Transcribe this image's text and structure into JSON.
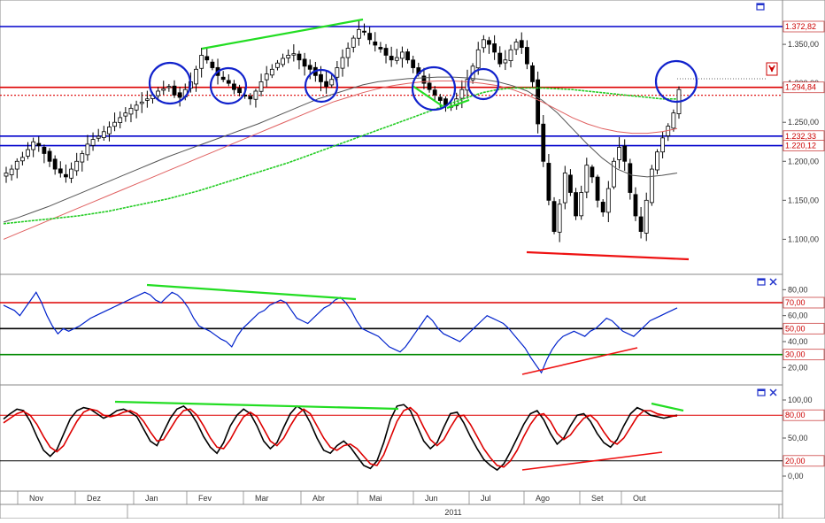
{
  "colors": {
    "background": "#ffffff",
    "price_candles": "#000000",
    "ma_fast": "#555555",
    "ma_mid": "#e06060",
    "ma_slow": "#22cc22",
    "hline_blue": "#0000cc",
    "hline_red": "#dd0000",
    "rsi_line": "#0022cc",
    "stoch_k": "#000000",
    "stoch_d": "#dd0000",
    "trend_green": "#22dd22",
    "trend_red": "#ee1111",
    "circles": "#1122cc",
    "label_text": "#cc0000",
    "axis_text": "#333333"
  },
  "icons": {
    "price_panel": [
      "window-icon"
    ],
    "rsi_panel": [
      "window-icon",
      "close-icon"
    ],
    "stoch_panel": [
      "window-icon",
      "close-icon"
    ],
    "alert": "alert-arrow-icon"
  },
  "x_axis": {
    "months": [
      "Nov",
      "Dez",
      "Jan",
      "Fev",
      "Mar",
      "Abr",
      "Mai",
      "Jun",
      "Jul",
      "Ago",
      "Set",
      "Out"
    ],
    "year": "2011"
  },
  "chart_data": [
    {
      "type": "candlestick",
      "panel": "price",
      "x_range": [
        "Nov",
        "Out"
      ],
      "ylim": [
        1060,
        1380
      ],
      "y_ticks": [
        {
          "value": 1100,
          "label": "1.100,00"
        },
        {
          "value": 1150,
          "label": "1.150,00"
        },
        {
          "value": 1200,
          "label": "1.200,00"
        },
        {
          "value": 1250,
          "label": "1.250,00"
        },
        {
          "value": 1300,
          "label": "1.300,00"
        },
        {
          "value": 1350,
          "label": "1.350,00"
        }
      ],
      "horizontal_lines": [
        {
          "value": 1372.82,
          "label": "1.372,82",
          "color": "blue"
        },
        {
          "value": 1294.84,
          "label": "1.294,84",
          "color": "red"
        },
        {
          "value": 1232.33,
          "label": "1.232,33",
          "color": "blue"
        },
        {
          "value": 1220.12,
          "label": "1.220,12",
          "color": "blue"
        }
      ],
      "close_series": [
        1185,
        1190,
        1200,
        1205,
        1215,
        1225,
        1220,
        1210,
        1200,
        1190,
        1185,
        1180,
        1190,
        1200,
        1210,
        1222,
        1228,
        1232,
        1238,
        1244,
        1250,
        1256,
        1262,
        1268,
        1272,
        1276,
        1280,
        1285,
        1290,
        1293,
        1296,
        1285,
        1282,
        1292,
        1302,
        1318,
        1336,
        1330,
        1320,
        1310,
        1305,
        1300,
        1292,
        1288,
        1284,
        1280,
        1290,
        1302,
        1312,
        1318,
        1326,
        1332,
        1336,
        1338,
        1330,
        1322,
        1318,
        1310,
        1302,
        1296,
        1305,
        1320,
        1333,
        1345,
        1358,
        1369,
        1366,
        1356,
        1349,
        1344,
        1336,
        1330,
        1333,
        1340,
        1330,
        1320,
        1312,
        1300,
        1292,
        1285,
        1278,
        1272,
        1270,
        1280,
        1292,
        1305,
        1322,
        1343,
        1356,
        1350,
        1340,
        1325,
        1330,
        1343,
        1353,
        1346,
        1325,
        1302,
        1248,
        1200,
        1150,
        1110,
        1145,
        1185,
        1160,
        1130,
        1160,
        1195,
        1180,
        1150,
        1135,
        1165,
        1200,
        1218,
        1200,
        1160,
        1130,
        1110,
        1150,
        1190,
        1212,
        1230,
        1245,
        1262,
        1292
      ],
      "series": [
        {
          "name": "",
          "kind": "moving_average",
          "values": [
            1122,
            1128,
            1135,
            1142,
            1150,
            1158,
            1166,
            1174,
            1182,
            1190,
            1198,
            1206,
            1213,
            1220,
            1227,
            1234,
            1241,
            1248,
            1256,
            1264,
            1272,
            1280,
            1286,
            1292,
            1298,
            1302,
            1304,
            1306,
            1307,
            1308,
            1308,
            1307,
            1305,
            1302,
            1297,
            1290,
            1278,
            1262,
            1242,
            1222,
            1204,
            1190,
            1182,
            1180,
            1182,
            1185
          ]
        },
        {
          "name": "",
          "kind": "moving_average",
          "values": [
            1100,
            1108,
            1116,
            1124,
            1132,
            1140,
            1148,
            1156,
            1164,
            1172,
            1180,
            1188,
            1196,
            1204,
            1212,
            1220,
            1228,
            1236,
            1244,
            1252,
            1260,
            1268,
            1276,
            1282,
            1288,
            1293,
            1297,
            1300,
            1302,
            1303,
            1303,
            1302,
            1300,
            1297,
            1292,
            1285,
            1276,
            1266,
            1256,
            1248,
            1242,
            1238,
            1236,
            1236,
            1238,
            1242
          ]
        },
        {
          "name": "",
          "kind": "moving_average",
          "values": [
            1120,
            1122,
            1124,
            1126,
            1128,
            1130,
            1133,
            1136,
            1140,
            1144,
            1148,
            1152,
            1157,
            1162,
            1168,
            1174,
            1180,
            1186,
            1192,
            1198,
            1205,
            1212,
            1219,
            1226,
            1233,
            1240,
            1247,
            1254,
            1261,
            1268,
            1275,
            1282,
            1288,
            1292,
            1294,
            1294,
            1294,
            1293,
            1292,
            1290,
            1288,
            1286,
            1284,
            1282,
            1280,
            1280
          ]
        }
      ],
      "annotations": [
        "circles",
        "trendlines"
      ]
    },
    {
      "type": "line",
      "panel": "rsi",
      "ylim": [
        10,
        85
      ],
      "y_ticks": [
        {
          "value": 80,
          "label": "80,00"
        },
        {
          "value": 60,
          "label": "60,00"
        },
        {
          "value": 40,
          "label": "40,00"
        },
        {
          "value": 20,
          "label": "20,00"
        }
      ],
      "levels": [
        {
          "value": 70,
          "label": "70,00",
          "color": "red"
        },
        {
          "value": 50,
          "label": "50,00",
          "color": "black"
        },
        {
          "value": 30,
          "label": "30,00",
          "color": "green"
        }
      ],
      "values": [
        68,
        66,
        64,
        60,
        66,
        72,
        78,
        70,
        60,
        52,
        46,
        50,
        48,
        50,
        52,
        55,
        58,
        60,
        62,
        64,
        66,
        68,
        70,
        72,
        74,
        76,
        78,
        76,
        72,
        70,
        74,
        78,
        76,
        72,
        66,
        58,
        52,
        50,
        48,
        45,
        42,
        40,
        36,
        44,
        50,
        54,
        58,
        62,
        64,
        68,
        70,
        72,
        70,
        64,
        58,
        56,
        54,
        58,
        62,
        66,
        68,
        72,
        74,
        70,
        64,
        56,
        50,
        48,
        46,
        44,
        40,
        36,
        34,
        32,
        36,
        42,
        48,
        54,
        60,
        56,
        50,
        46,
        44,
        42,
        40,
        44,
        48,
        52,
        56,
        60,
        58,
        56,
        54,
        50,
        45,
        40,
        35,
        28,
        22,
        16,
        26,
        34,
        40,
        44,
        46,
        48,
        46,
        44,
        48,
        50,
        54,
        58,
        56,
        52,
        48,
        46,
        44,
        48,
        52,
        56,
        58,
        60,
        62,
        64,
        66
      ]
    },
    {
      "type": "line",
      "panel": "stochastic",
      "ylim": [
        -10,
        110
      ],
      "y_ticks": [
        {
          "value": 100,
          "label": "100,00"
        },
        {
          "value": 50,
          "label": "50,00"
        },
        {
          "value": 0,
          "label": "0,00"
        }
      ],
      "levels": [
        {
          "value": 80,
          "label": "80,00",
          "color": "red"
        },
        {
          "value": 20,
          "label": "20,00",
          "color": "black"
        }
      ],
      "series": [
        {
          "name": "",
          "kind": "k",
          "values": [
            75,
            82,
            88,
            86,
            72,
            52,
            34,
            26,
            35,
            55,
            75,
            86,
            90,
            88,
            82,
            76,
            80,
            86,
            88,
            84,
            78,
            62,
            46,
            40,
            58,
            76,
            88,
            92,
            84,
            70,
            52,
            38,
            30,
            44,
            66,
            80,
            88,
            82,
            66,
            46,
            36,
            44,
            64,
            82,
            92,
            86,
            70,
            50,
            34,
            30,
            40,
            46,
            38,
            26,
            14,
            10,
            20,
            44,
            74,
            92,
            94,
            86,
            66,
            46,
            36,
            44,
            64,
            82,
            84,
            70,
            52,
            36,
            22,
            14,
            8,
            16,
            32,
            50,
            68,
            82,
            86,
            74,
            56,
            42,
            50,
            66,
            80,
            82,
            72,
            56,
            44,
            38,
            48,
            66,
            82,
            90,
            86,
            80,
            78,
            76,
            78,
            80
          ]
        },
        {
          "name": "",
          "kind": "d",
          "values": [
            70,
            76,
            82,
            85,
            80,
            68,
            52,
            38,
            32,
            40,
            56,
            72,
            84,
            88,
            86,
            80,
            78,
            80,
            84,
            86,
            82,
            72,
            58,
            46,
            48,
            62,
            76,
            86,
            88,
            80,
            66,
            50,
            38,
            36,
            48,
            64,
            78,
            84,
            78,
            62,
            46,
            40,
            50,
            66,
            80,
            88,
            82,
            66,
            50,
            38,
            34,
            40,
            42,
            36,
            26,
            16,
            14,
            28,
            50,
            72,
            86,
            90,
            82,
            64,
            48,
            40,
            48,
            64,
            78,
            80,
            68,
            52,
            36,
            24,
            14,
            12,
            20,
            34,
            52,
            68,
            80,
            82,
            72,
            56,
            48,
            54,
            66,
            76,
            80,
            72,
            58,
            46,
            42,
            50,
            64,
            78,
            86,
            86,
            82,
            80,
            79,
            79
          ]
        }
      ]
    }
  ]
}
